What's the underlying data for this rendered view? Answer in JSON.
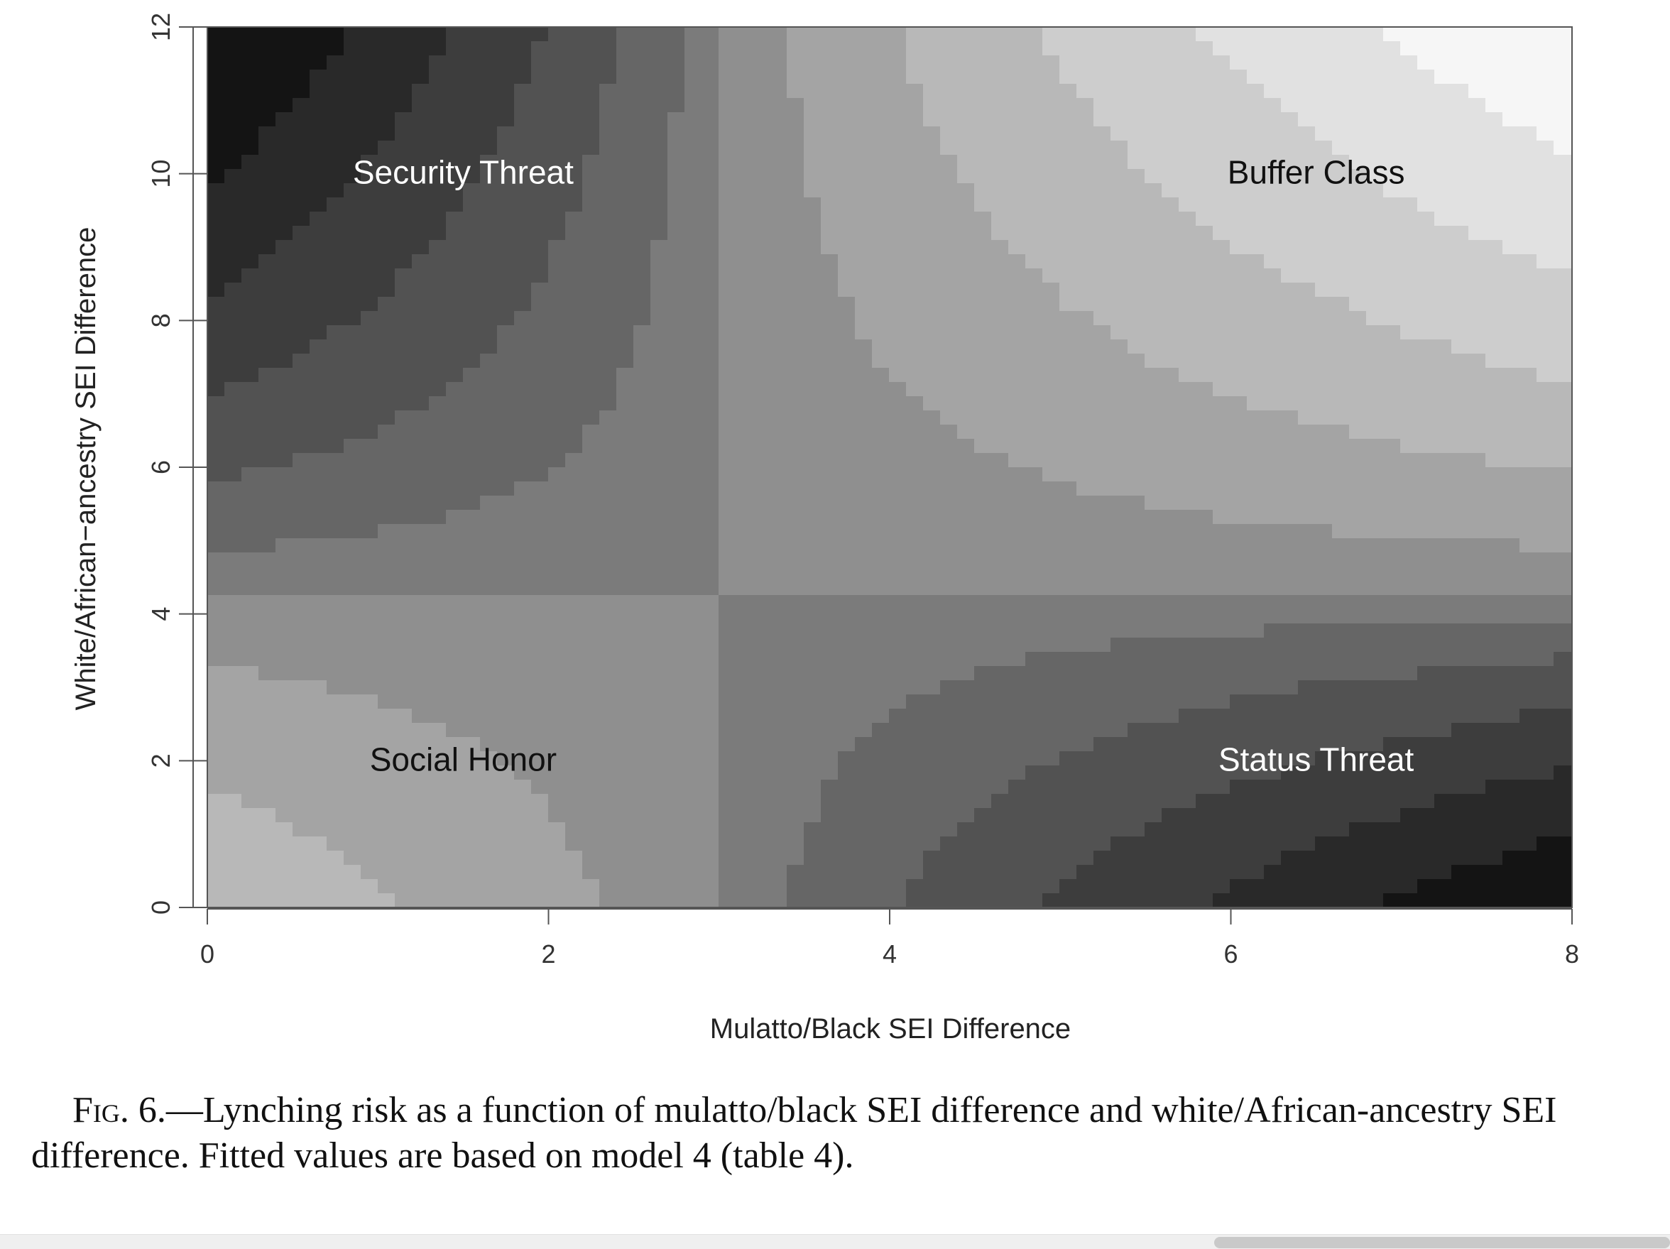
{
  "chart_data": {
    "type": "heatmap",
    "xlabel": "Mulatto/Black SEI Difference",
    "ylabel": "White/African−ancestry SEI Difference",
    "xlim": [
      0,
      8
    ],
    "ylim": [
      0,
      12
    ],
    "x_ticks": [
      0,
      2,
      4,
      6,
      8
    ],
    "y_ticks": [
      0,
      2,
      4,
      6,
      8,
      10,
      12
    ],
    "x_tick_labels": [
      "0",
      "2",
      "4",
      "6",
      "8"
    ],
    "y_tick_labels": [
      "0",
      "2",
      "4",
      "6",
      "8",
      "10",
      "12"
    ],
    "colormap": "grayscale (dark = high, light = low)",
    "contour_bands": 12,
    "surface": {
      "form": "saddle",
      "center": [
        3.0,
        4.3
      ],
      "description": "higher lynching risk toward top-left and bottom-right, lower toward bottom-left and top-right"
    },
    "annotations": [
      {
        "text": "Security Threat",
        "x": 1.5,
        "y": 10.0,
        "color": "#ffffff"
      },
      {
        "text": "Buffer Class",
        "x": 6.5,
        "y": 10.0,
        "color": "#111111"
      },
      {
        "text": "Social Honor",
        "x": 1.5,
        "y": 2.0,
        "color": "#111111"
      },
      {
        "text": "Status Threat",
        "x": 6.5,
        "y": 2.0,
        "color": "#ffffff"
      }
    ]
  },
  "caption": {
    "label": "Fig. 6.",
    "text": "—Lynching risk as a function of mulatto/black SEI difference and white/African-ancestry SEI difference. Fitted values are based on model 4 (table 4)."
  }
}
